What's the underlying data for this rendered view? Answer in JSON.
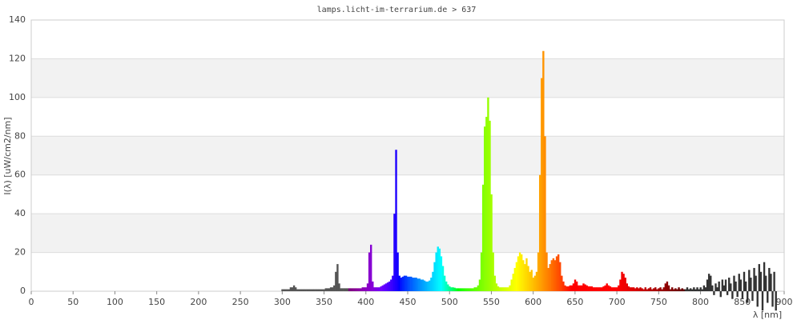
{
  "chart_data": {
    "type": "bar",
    "title": "lamps.licht-im-terrarium.de > 637",
    "x_label": "λ [nm]",
    "y_label": "I(λ)  [uW/cm2/nm]",
    "x": [
      300,
      302,
      304,
      306,
      308,
      310,
      312,
      314,
      316,
      318,
      320,
      322,
      324,
      326,
      328,
      330,
      332,
      334,
      336,
      338,
      340,
      342,
      344,
      346,
      348,
      350,
      352,
      354,
      356,
      358,
      360,
      362,
      364,
      366,
      368,
      370,
      372,
      374,
      376,
      378,
      380,
      382,
      384,
      386,
      388,
      390,
      392,
      394,
      396,
      398,
      400,
      402,
      404,
      406,
      408,
      410,
      412,
      414,
      416,
      418,
      420,
      422,
      424,
      426,
      428,
      430,
      432,
      434,
      436,
      438,
      440,
      442,
      444,
      446,
      448,
      450,
      452,
      454,
      456,
      458,
      460,
      462,
      464,
      466,
      468,
      470,
      472,
      474,
      476,
      478,
      480,
      482,
      484,
      486,
      488,
      490,
      492,
      494,
      496,
      498,
      500,
      502,
      504,
      506,
      508,
      510,
      512,
      514,
      516,
      518,
      520,
      522,
      524,
      526,
      528,
      530,
      532,
      534,
      536,
      538,
      540,
      542,
      544,
      546,
      548,
      550,
      552,
      554,
      556,
      558,
      560,
      562,
      564,
      566,
      568,
      570,
      572,
      574,
      576,
      578,
      580,
      582,
      584,
      586,
      588,
      590,
      592,
      594,
      596,
      598,
      600,
      602,
      604,
      606,
      608,
      610,
      612,
      614,
      616,
      618,
      620,
      622,
      624,
      626,
      628,
      630,
      632,
      634,
      636,
      638,
      640,
      642,
      644,
      646,
      648,
      650,
      652,
      654,
      656,
      658,
      660,
      662,
      664,
      666,
      668,
      670,
      672,
      674,
      676,
      678,
      680,
      682,
      684,
      686,
      688,
      690,
      692,
      694,
      696,
      698,
      700,
      702,
      704,
      706,
      708,
      710,
      712,
      714,
      716,
      718,
      720,
      722,
      724,
      726,
      728,
      730,
      732,
      734,
      736,
      738,
      740,
      742,
      744,
      746,
      748,
      750,
      752,
      754,
      756,
      758,
      760,
      762,
      764,
      766,
      768,
      770,
      772,
      774,
      776,
      778,
      780,
      782,
      784,
      786,
      788,
      790,
      792,
      794,
      796,
      798,
      800,
      802,
      804,
      806,
      808,
      810,
      812,
      814,
      816,
      818,
      820,
      822,
      824,
      826,
      828,
      830,
      832,
      834,
      836,
      838,
      840,
      842,
      844,
      846,
      848,
      850,
      852,
      854,
      856,
      858,
      860,
      862,
      864,
      866,
      868,
      870,
      872,
      874,
      876,
      878,
      880,
      882,
      884,
      886,
      888,
      890
    ],
    "values": [
      1,
      1,
      1,
      1,
      1,
      2,
      2,
      3,
      2,
      1,
      1,
      1,
      1,
      1,
      1,
      1,
      1,
      1,
      1,
      1,
      1,
      1,
      1,
      1,
      1,
      1,
      1.5,
      1.5,
      1.5,
      2,
      2,
      3,
      10,
      14,
      4,
      1.5,
      1.5,
      1.5,
      1.5,
      1.5,
      1.5,
      1.5,
      1.5,
      1.5,
      1.5,
      1.5,
      1.5,
      1.5,
      2,
      2,
      2,
      4,
      20,
      24,
      5,
      2,
      2,
      2,
      2,
      2.5,
      3,
      3.5,
      4,
      4.5,
      5,
      6,
      8,
      40,
      73,
      20,
      8,
      7,
      7.5,
      8,
      8,
      7.5,
      7.5,
      7.5,
      7,
      7,
      7,
      6.5,
      6.5,
      6,
      6,
      5.5,
      5,
      5,
      5.5,
      7,
      10,
      15,
      20,
      23,
      22,
      18,
      13,
      8,
      5,
      3.5,
      2.5,
      2,
      2,
      1.8,
      1.5,
      1.5,
      1.5,
      1.5,
      1.5,
      1.5,
      1.5,
      1.5,
      1.5,
      1.5,
      1.5,
      2,
      2,
      3,
      6,
      20,
      55,
      85,
      90,
      100,
      88,
      50,
      20,
      8,
      4,
      2.5,
      2,
      2,
      2,
      2,
      2,
      2,
      3,
      6,
      9,
      12,
      15,
      18,
      20,
      19,
      16,
      14,
      17,
      13,
      10,
      11,
      7,
      8,
      10,
      20,
      60,
      110,
      124,
      80,
      20,
      12,
      14,
      16,
      17,
      16,
      18,
      19,
      15,
      8,
      5,
      3,
      2.5,
      2.5,
      3,
      3,
      4,
      6,
      5,
      3,
      3,
      3,
      4,
      3.5,
      3,
      2.5,
      2.5,
      2.5,
      2,
      2,
      2,
      2,
      2,
      2,
      2.5,
      3,
      4,
      3,
      2.5,
      2,
      2,
      2,
      2,
      3,
      6,
      10,
      9,
      7,
      4,
      2.5,
      2,
      2,
      2,
      1.5,
      2,
      1.5,
      2,
      1.5,
      1,
      2,
      1,
      1.5,
      2,
      1,
      1.5,
      2,
      1,
      1.5,
      2,
      1,
      2,
      4,
      5,
      3,
      1,
      2,
      1,
      1.5,
      1,
      2,
      1,
      1.5,
      1,
      1,
      2,
      1,
      1.5,
      1,
      2,
      1,
      2,
      1,
      2,
      1,
      3,
      2,
      6,
      9,
      8,
      3,
      -2,
      4,
      2,
      5,
      -3,
      6,
      3,
      6,
      -2,
      7,
      4,
      -4,
      8,
      5,
      -3,
      9,
      6,
      -4,
      10,
      5,
      -6,
      11,
      7,
      -5,
      12,
      8,
      -8,
      14,
      10,
      -10,
      15,
      8,
      -6,
      12,
      9,
      -8,
      10,
      -10
    ],
    "xlim": [
      0,
      900
    ],
    "xticks": [
      0,
      50,
      100,
      150,
      200,
      250,
      300,
      350,
      400,
      450,
      500,
      550,
      600,
      650,
      700,
      750,
      800,
      850,
      900
    ],
    "ylim": [
      0,
      140
    ],
    "yticks": [
      0,
      20,
      40,
      60,
      80,
      100,
      120,
      140
    ],
    "grid": true,
    "bands": true
  }
}
